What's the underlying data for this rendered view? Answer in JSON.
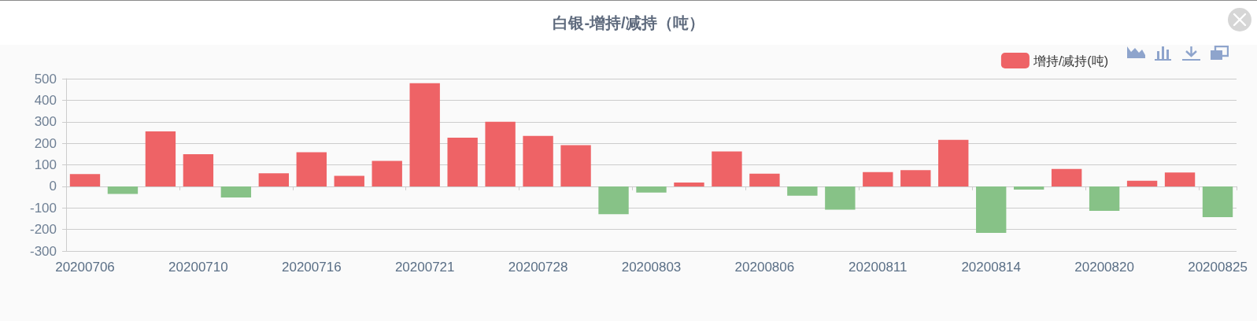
{
  "chart_data": {
    "type": "bar",
    "title": "白银-增持/减持（吨）",
    "categories": [
      "20200706",
      null,
      null,
      "20200710",
      null,
      null,
      "20200716",
      null,
      null,
      "20200721",
      null,
      null,
      "20200728",
      null,
      null,
      "20200803",
      null,
      null,
      "20200806",
      null,
      null,
      "20200811",
      null,
      null,
      "20200814",
      null,
      null,
      "20200820",
      null,
      null,
      "20200825"
    ],
    "series": [
      {
        "name": "增持/减持(吨)",
        "color": "#ee6366",
        "values": [
          57,
          -35,
          255,
          149,
          -52,
          61,
          158,
          49,
          118,
          479,
          226,
          300,
          234,
          191,
          -129,
          -29,
          18,
          162,
          59,
          -43,
          -108,
          66,
          75,
          216,
          -216,
          -15,
          81,
          -114,
          26,
          64,
          -143
        ],
        "colors": [
          "#ee6366",
          "#87c287",
          "#ee6366",
          "#ee6366",
          "#87c287",
          "#ee6366",
          "#ee6366",
          "#ee6366",
          "#ee6366",
          "#ee6366",
          "#ee6366",
          "#ee6366",
          "#ee6366",
          "#ee6366",
          "#87c287",
          "#87c287",
          "#ee6366",
          "#ee6366",
          "#ee6366",
          "#87c287",
          "#87c287",
          "#ee6366",
          "#ee6366",
          "#ee6366",
          "#87c287",
          "#87c287",
          "#ee6366",
          "#87c287",
          "#ee6366",
          "#ee6366",
          "#87c287"
        ]
      }
    ],
    "ylim": [
      -300,
      500
    ],
    "yticks": [
      -300,
      -200,
      -100,
      0,
      100,
      200,
      300,
      400,
      500
    ],
    "grid": "y",
    "legend": "top right"
  }
}
